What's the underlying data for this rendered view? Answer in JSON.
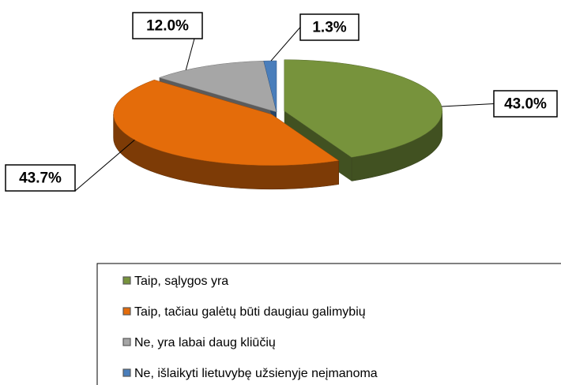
{
  "chart_data": {
    "type": "pie3d",
    "categories": [
      "Taip, sąlygos yra",
      "Taip, tačiau galėtų būti daugiau galimybių",
      "Ne, yra labai daug kliūčių",
      "Ne, išlaikyti lietuvybę užsienyje neįmanoma"
    ],
    "values": [
      43.0,
      43.7,
      12.0,
      1.3
    ],
    "value_labels": [
      "43.0%",
      "43.7%",
      "12.0%",
      "1.3%"
    ],
    "colors": [
      "#77933c",
      "#e46c0a",
      "#a6a6a6",
      "#4a7ebb"
    ],
    "legend": "bottom"
  }
}
